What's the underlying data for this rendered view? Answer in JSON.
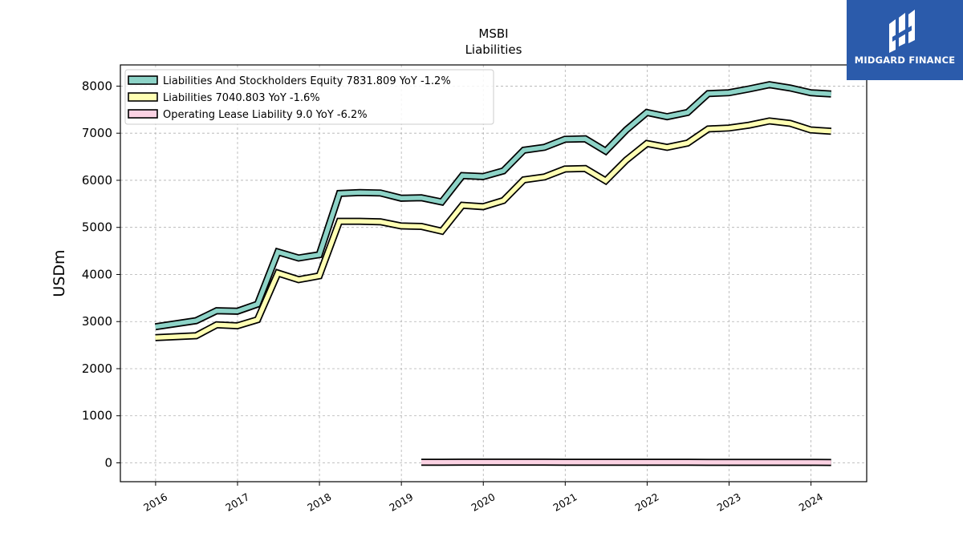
{
  "chart_data": {
    "type": "line",
    "title": "MSBI",
    "subtitle": "Liabilities",
    "ylabel": "USDm",
    "xlabel": "",
    "ylim": [
      -400,
      8450
    ],
    "xlim": [
      2015.57,
      2024.68
    ],
    "yticks": [
      0,
      1000,
      2000,
      3000,
      4000,
      5000,
      6000,
      7000,
      8000
    ],
    "xticks": [
      "2016",
      "2017",
      "2018",
      "2019",
      "2020",
      "2021",
      "2022",
      "2023",
      "2024"
    ],
    "grid": true,
    "legend_position": "top-left",
    "series": [
      {
        "name": "Liabilities And Stockholders Equity",
        "legend": "Liabilities And Stockholders Equity  7831.809 YoY -1.2%",
        "color": "#8dd3c7",
        "x": [
          "2015-12-31",
          "2016-06-30",
          "2016-09-30",
          "2016-12-31",
          "2017-03-31",
          "2017-06-30",
          "2017-09-30",
          "2017-12-31",
          "2018-03-31",
          "2018-06-30",
          "2018-09-30",
          "2018-12-31",
          "2019-03-31",
          "2019-06-30",
          "2019-09-30",
          "2019-12-31",
          "2020-03-31",
          "2020-06-30",
          "2020-09-30",
          "2020-12-31",
          "2021-03-31",
          "2021-06-30",
          "2021-09-30",
          "2021-12-31",
          "2022-03-31",
          "2022-06-30",
          "2022-09-30",
          "2022-12-31",
          "2023-03-31",
          "2023-06-30",
          "2023-09-30",
          "2023-12-31",
          "2024-03-31"
        ],
        "values": [
          2890,
          3020,
          3230,
          3220,
          3370,
          4480,
          4350,
          4420,
          5720,
          5740,
          5730,
          5620,
          5630,
          5540,
          6100,
          6080,
          6200,
          6640,
          6700,
          6870,
          6880,
          6620,
          7070,
          7440,
          7350,
          7440,
          7840,
          7860,
          7940,
          8030,
          7960,
          7860,
          7832
        ]
      },
      {
        "name": "Liabilities",
        "legend": "Liabilities  7040.803 YoY -1.6%",
        "color": "#ffffb3",
        "x": [
          "2015-12-31",
          "2016-06-30",
          "2016-09-30",
          "2016-12-31",
          "2017-03-31",
          "2017-06-30",
          "2017-09-30",
          "2017-12-31",
          "2018-03-31",
          "2018-06-30",
          "2018-09-30",
          "2018-12-31",
          "2019-03-31",
          "2019-06-30",
          "2019-09-30",
          "2019-12-31",
          "2020-03-31",
          "2020-06-30",
          "2020-09-30",
          "2020-12-31",
          "2021-03-31",
          "2021-06-30",
          "2021-09-30",
          "2021-12-31",
          "2022-03-31",
          "2022-06-30",
          "2022-09-30",
          "2022-12-31",
          "2023-03-31",
          "2023-06-30",
          "2023-09-30",
          "2023-12-31",
          "2024-03-31"
        ],
        "values": [
          2660,
          2700,
          2930,
          2910,
          3040,
          4030,
          3890,
          3970,
          5130,
          5130,
          5120,
          5030,
          5020,
          4920,
          5470,
          5440,
          5570,
          6010,
          6070,
          6240,
          6250,
          5990,
          6430,
          6780,
          6700,
          6790,
          7090,
          7110,
          7170,
          7260,
          7210,
          7070,
          7041
        ]
      },
      {
        "name": "Operating Lease Liability",
        "legend": "Operating Lease Liability  9.0 YoY -6.2%",
        "color": "#fbd2e3",
        "x": [
          "2019-03-31",
          "2019-06-30",
          "2019-09-30",
          "2019-12-31",
          "2020-03-31",
          "2020-06-30",
          "2020-09-30",
          "2020-12-31",
          "2021-03-31",
          "2021-06-30",
          "2021-09-30",
          "2021-12-31",
          "2022-03-31",
          "2022-06-30",
          "2022-09-30",
          "2022-12-31",
          "2023-03-31",
          "2023-06-30",
          "2023-09-30",
          "2023-12-31",
          "2024-03-31"
        ],
        "values": [
          12,
          12,
          16,
          16,
          16,
          16,
          15,
          14,
          14,
          13,
          13,
          12,
          12,
          12,
          11,
          11,
          10,
          10,
          10,
          10,
          9
        ]
      }
    ]
  },
  "logo": {
    "text": "MIDGARD FINANCE",
    "color": "#2b5bab"
  }
}
